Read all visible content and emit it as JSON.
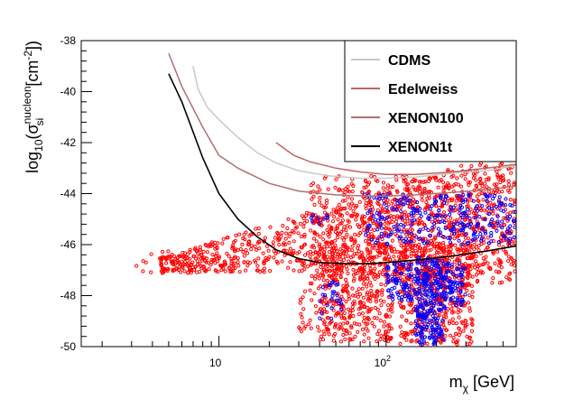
{
  "chart_data": {
    "type": "scatter",
    "title": "",
    "xscale": "log",
    "xlim": [
      1.5,
      600
    ],
    "ylim": [
      -50,
      -38
    ],
    "xlabel": {
      "main": "m",
      "sub": "χ",
      "unit": " [GeV]"
    },
    "ylabel": {
      "prefix": "log",
      "base": "10",
      "open": "(σ",
      "sup": "nucleon",
      "sub": "si",
      "unit": " [cm",
      "unit_sup": "-2",
      "close": "])"
    },
    "y_ticks": [
      {
        "value": -38,
        "label": "-38"
      },
      {
        "value": -40,
        "label": "-40"
      },
      {
        "value": -42,
        "label": "-42"
      },
      {
        "value": -44,
        "label": "-44"
      },
      {
        "value": -46,
        "label": "-46"
      },
      {
        "value": -48,
        "label": "-48"
      },
      {
        "value": -50,
        "label": "-50"
      }
    ],
    "x_major_ticks": [
      {
        "value": 10,
        "label": "10"
      },
      {
        "value": 100,
        "label": "10",
        "sup": "2"
      }
    ],
    "x_minor_ticks": [
      2,
      3,
      4,
      5,
      6,
      7,
      8,
      9,
      20,
      30,
      40,
      50,
      60,
      70,
      80,
      90,
      200,
      300,
      400,
      500
    ],
    "grid": false,
    "legend_position": "top-right",
    "series": [
      {
        "name": "CDMS",
        "color": "#c8c8c8",
        "x": [
          7.0,
          7.5,
          8.5,
          10,
          13,
          17,
          22,
          30,
          45,
          70,
          100,
          150,
          250,
          400,
          600
        ],
        "y": [
          -39.0,
          -39.9,
          -40.6,
          -41.1,
          -41.8,
          -42.4,
          -42.8,
          -43.1,
          -43.3,
          -43.4,
          -43.4,
          -43.35,
          -43.2,
          -43.1,
          -42.9
        ]
      },
      {
        "name": "Edelweiss",
        "color": "#c06464",
        "x": [
          22,
          28,
          35,
          50,
          70,
          100,
          150,
          250,
          400,
          600
        ],
        "y": [
          -42.0,
          -42.5,
          -42.75,
          -43.0,
          -43.15,
          -43.25,
          -43.25,
          -43.15,
          -43.0,
          -42.85
        ]
      },
      {
        "name": "XENON100",
        "color": "#b07070",
        "x": [
          5.0,
          6.0,
          8.0,
          10,
          13,
          20,
          30,
          50,
          80,
          100,
          150,
          250,
          400,
          600
        ],
        "y": [
          -38.5,
          -39.8,
          -41.4,
          -42.5,
          -43.0,
          -43.6,
          -43.9,
          -44.05,
          -44.1,
          -44.1,
          -44.05,
          -43.95,
          -43.85,
          -43.7
        ]
      },
      {
        "name": "XENON1t",
        "color": "#000000",
        "x": [
          5.0,
          6.0,
          8.0,
          10,
          13,
          17,
          22,
          30,
          40,
          55,
          80,
          100,
          150,
          250,
          400,
          600
        ],
        "y": [
          -39.3,
          -40.4,
          -42.6,
          -44.0,
          -45.0,
          -45.7,
          -46.2,
          -46.55,
          -46.7,
          -46.75,
          -46.75,
          -46.7,
          -46.6,
          -46.45,
          -46.25,
          -46.05
        ]
      }
    ],
    "scan_points": [
      {
        "name": "red points",
        "color": "#ff0000"
      },
      {
        "name": "blue points",
        "color": "#0000ff"
      }
    ]
  }
}
